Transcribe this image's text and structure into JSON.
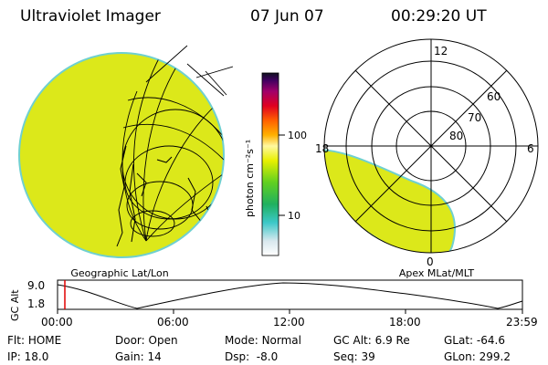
{
  "header": {
    "instrument": "Ultraviolet Imager",
    "date": "07 Jun 07",
    "time": "00:29:20 UT"
  },
  "colorbar": {
    "unit_label": "photon cm⁻²s⁻¹",
    "ticks": [
      "100",
      "10"
    ]
  },
  "left_panel": {
    "caption": "Geographic Lat/Lon"
  },
  "right_panel": {
    "caption": "Apex MLat/MLT",
    "lat_labels": [
      "80",
      "70",
      "60"
    ],
    "mlt_labels": [
      "12",
      "6",
      "0",
      "18"
    ]
  },
  "altitude_plot": {
    "ylabel": "GC Alt",
    "yticks": [
      "9.0",
      "1.8"
    ],
    "xticks": [
      "00:00",
      "06:00",
      "12:00",
      "18:00",
      "23:59"
    ]
  },
  "status": {
    "row1": [
      {
        "key": "Flt:",
        "value": "HOME"
      },
      {
        "key": "Door:",
        "value": "Open"
      },
      {
        "key": "Mode:",
        "value": "Normal"
      },
      {
        "key": "GC Alt:",
        "value": "6.9 Re"
      },
      {
        "key": "GLat:",
        "value": "-64.6"
      }
    ],
    "row2": [
      {
        "key": "IP:",
        "value": "18.0"
      },
      {
        "key": "Gain:",
        "value": "14"
      },
      {
        "key": "Dsp:",
        "value": "  -8.0"
      },
      {
        "key": "Seq:",
        "value": "39"
      },
      {
        "key": "GLon:",
        "value": "299.2"
      }
    ]
  },
  "colors": {
    "image_fill": "#dce81a",
    "edge": "#6fd0d0",
    "marker": "#e00000"
  }
}
